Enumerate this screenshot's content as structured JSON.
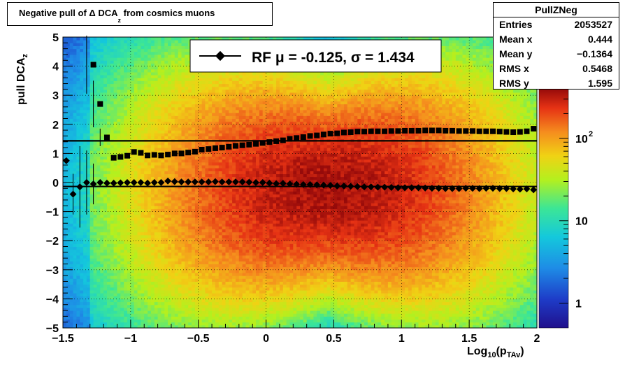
{
  "title": {
    "main": "Negative pull of Δ DCA",
    "sub": "z",
    "tail": " from cosmics muons"
  },
  "stats": {
    "name": "PullZNeg",
    "rows": [
      {
        "label": "Entries",
        "value": "2053527"
      },
      {
        "label": "Mean x",
        "value": "0.444"
      },
      {
        "label": "Mean y",
        "value": "−0.1364"
      },
      {
        "label": "RMS x",
        "value": "0.5468"
      },
      {
        "label": "RMS y",
        "value": "1.595"
      }
    ]
  },
  "legend": {
    "text": "RF μ = -0.125, σ =   1.434"
  },
  "axes": {
    "ylabel_main": "pull DCA",
    "ylabel_sub": "z",
    "xlabel_main": "Log",
    "xlabel_sub1": "10",
    "xlabel_mid": "(p",
    "xlabel_sub2": "TAv",
    "xlabel_end": ")"
  },
  "chart_data": {
    "type": "heatmap",
    "xlim": [
      -1.5,
      2
    ],
    "ylim": [
      -5,
      5
    ],
    "x_ticks": [
      "−1.5",
      "−1",
      "−0.5",
      "0",
      "0.5",
      "1",
      "1.5",
      "2"
    ],
    "y_ticks": [
      "−5",
      "−4",
      "−3",
      "−2",
      "−1",
      "0",
      "1",
      "2",
      "3",
      "4",
      "5"
    ],
    "color_scale": "log",
    "color_ticks": [
      {
        "label": "1",
        "value": 1
      },
      {
        "label": "10",
        "value": 10
      },
      {
        "label": "10",
        "sup": "2",
        "value": 100
      }
    ],
    "color_max": 400,
    "grid": true,
    "density": {
      "center_x": 0.45,
      "center_y": -0.2,
      "sigma_x": 0.55,
      "sigma_y": 1.6
    },
    "mean_series": {
      "name": "mean",
      "x": [
        -1.475,
        -1.425,
        -1.375,
        -1.325,
        -1.275,
        -1.225,
        -1.175,
        -1.125,
        -1.075,
        -1.025,
        -0.975,
        -0.925,
        -0.875,
        -0.825,
        -0.775,
        -0.725,
        -0.675,
        -0.625,
        -0.575,
        -0.525,
        -0.475,
        -0.425,
        -0.375,
        -0.325,
        -0.275,
        -0.225,
        -0.175,
        -0.125,
        -0.075,
        -0.025,
        0.025,
        0.075,
        0.125,
        0.175,
        0.225,
        0.275,
        0.325,
        0.375,
        0.425,
        0.475,
        0.525,
        0.575,
        0.625,
        0.675,
        0.725,
        0.775,
        0.825,
        0.875,
        0.925,
        0.975,
        1.025,
        1.075,
        1.125,
        1.175,
        1.225,
        1.275,
        1.325,
        1.375,
        1.425,
        1.475,
        1.525,
        1.575,
        1.625,
        1.675,
        1.725,
        1.775,
        1.825,
        1.875,
        1.925,
        1.975
      ],
      "y": [
        0.75,
        -0.4,
        -0.15,
        0.0,
        -0.05,
        0.0,
        -0.02,
        -0.02,
        -0.01,
        0.0,
        0.0,
        0.0,
        -0.02,
        0.0,
        0.0,
        0.05,
        0.03,
        0.02,
        0.02,
        0.02,
        0.02,
        0.02,
        0.03,
        0.02,
        0.02,
        0.02,
        0.02,
        0.01,
        0.0,
        0.0,
        -0.02,
        -0.04,
        -0.03,
        -0.05,
        -0.06,
        -0.07,
        -0.07,
        -0.08,
        -0.09,
        -0.1,
        -0.12,
        -0.12,
        -0.13,
        -0.14,
        -0.15,
        -0.15,
        -0.16,
        -0.16,
        -0.17,
        -0.18,
        -0.18,
        -0.18,
        -0.18,
        -0.19,
        -0.2,
        -0.2,
        -0.21,
        -0.21,
        -0.21,
        -0.2,
        -0.2,
        -0.21,
        -0.2,
        -0.2,
        -0.21,
        -0.21,
        -0.22,
        -0.23,
        -0.22,
        -0.25
      ]
    },
    "rms_series": {
      "name": "rms",
      "x": [
        -1.275,
        -1.225,
        -1.175,
        -1.125,
        -1.075,
        -1.025,
        -0.975,
        -0.925,
        -0.875,
        -0.825,
        -0.775,
        -0.725,
        -0.675,
        -0.625,
        -0.575,
        -0.525,
        -0.475,
        -0.425,
        -0.375,
        -0.325,
        -0.275,
        -0.225,
        -0.175,
        -0.125,
        -0.075,
        -0.025,
        0.025,
        0.075,
        0.125,
        0.175,
        0.225,
        0.275,
        0.325,
        0.375,
        0.425,
        0.475,
        0.525,
        0.575,
        0.625,
        0.675,
        0.725,
        0.775,
        0.825,
        0.875,
        0.925,
        0.975,
        1.025,
        1.075,
        1.125,
        1.175,
        1.225,
        1.275,
        1.325,
        1.375,
        1.425,
        1.475,
        1.525,
        1.575,
        1.625,
        1.675,
        1.725,
        1.775,
        1.825,
        1.875,
        1.925,
        1.975
      ],
      "y": [
        4.05,
        2.7,
        1.55,
        0.85,
        0.88,
        0.92,
        1.05,
        1.02,
        0.93,
        0.95,
        0.93,
        0.96,
        1.0,
        1.0,
        1.03,
        1.06,
        1.13,
        1.15,
        1.18,
        1.2,
        1.23,
        1.26,
        1.28,
        1.3,
        1.33,
        1.36,
        1.39,
        1.42,
        1.45,
        1.5,
        1.53,
        1.56,
        1.6,
        1.62,
        1.65,
        1.68,
        1.69,
        1.72,
        1.73,
        1.75,
        1.75,
        1.76,
        1.76,
        1.76,
        1.77,
        1.77,
        1.78,
        1.78,
        1.78,
        1.79,
        1.79,
        1.79,
        1.78,
        1.78,
        1.77,
        1.77,
        1.77,
        1.76,
        1.76,
        1.76,
        1.75,
        1.74,
        1.73,
        1.74,
        1.76,
        1.85
      ]
    },
    "hlines": [
      -0.1364,
      1.434
    ]
  }
}
